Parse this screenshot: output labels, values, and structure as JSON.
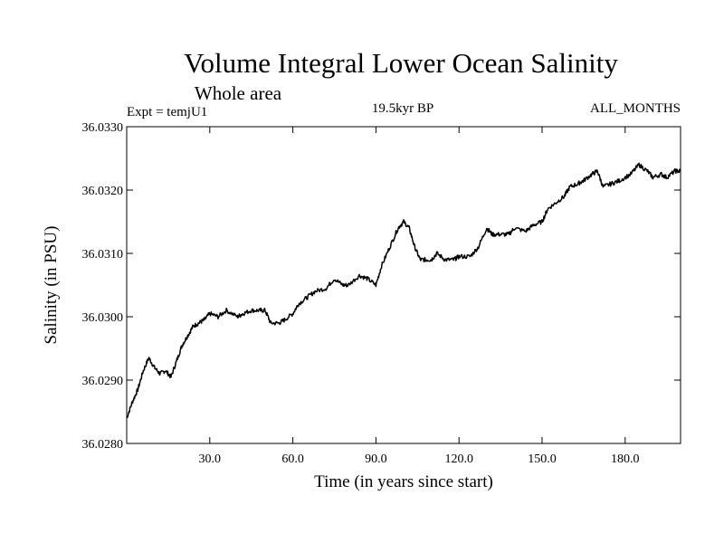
{
  "chart_data": {
    "type": "line",
    "title": "Volume Integral Lower Ocean Salinity",
    "subtitle": "Whole area",
    "annotations": {
      "left": "Expt = temjU1",
      "center": "19.5kyr BP",
      "right": "ALL_MONTHS"
    },
    "xlabel": "Time (in years since start)",
    "ylabel": "Salinity (in PSU)",
    "xlim": [
      0,
      200
    ],
    "ylim": [
      36.028,
      36.033
    ],
    "x_ticks": [
      30,
      60,
      90,
      120,
      150,
      180
    ],
    "x_tick_labels": [
      "30.0",
      "60.0",
      "90.0",
      "120.0",
      "150.0",
      "180.0"
    ],
    "y_ticks": [
      36.028,
      36.029,
      36.03,
      36.031,
      36.032,
      36.033
    ],
    "y_tick_labels": [
      "36.0280",
      "36.0290",
      "36.0300",
      "36.0310",
      "36.0320",
      "36.0330"
    ],
    "grid": false,
    "series": [
      {
        "name": "Salinity",
        "color": "#000000",
        "x": [
          0,
          2,
          4,
          6,
          8,
          10,
          12,
          14,
          16,
          18,
          20,
          22,
          24,
          26,
          28,
          30,
          33,
          36,
          40,
          42,
          45,
          48,
          50,
          52,
          55,
          57,
          60,
          62,
          65,
          68,
          72,
          75,
          78,
          80,
          84,
          87,
          90,
          92,
          95,
          98,
          100,
          102,
          104,
          106,
          108,
          110,
          112,
          115,
          118,
          120,
          124,
          127,
          130,
          132,
          135,
          138,
          140,
          144,
          147,
          150,
          152,
          155,
          158,
          160,
          163,
          165,
          168,
          170,
          172,
          175,
          178,
          182,
          185,
          188,
          190,
          193,
          195,
          198,
          200
        ],
        "values": [
          36.0284,
          36.02865,
          36.02885,
          36.02915,
          36.02935,
          36.0292,
          36.0291,
          36.02915,
          36.02905,
          36.0293,
          36.02955,
          36.0297,
          36.02985,
          36.0299,
          36.02995,
          36.03005,
          36.03,
          36.0301,
          36.03,
          36.03005,
          36.0301,
          36.0301,
          36.0301,
          36.0299,
          36.0299,
          36.02995,
          36.03005,
          36.0302,
          36.0303,
          36.0304,
          36.03045,
          36.0306,
          36.0305,
          36.0305,
          36.03065,
          36.0306,
          36.0305,
          36.0308,
          36.0311,
          36.0314,
          36.0315,
          36.0314,
          36.0311,
          36.0309,
          36.0309,
          36.0309,
          36.031,
          36.0309,
          36.0309,
          36.03095,
          36.03095,
          36.0311,
          36.0314,
          36.0313,
          36.0313,
          36.0313,
          36.0314,
          36.03135,
          36.03145,
          36.0315,
          36.0317,
          36.0318,
          36.0319,
          36.03205,
          36.0321,
          36.03215,
          36.03225,
          36.0323,
          36.03205,
          36.0321,
          36.03215,
          36.03225,
          36.0324,
          36.0323,
          36.0322,
          36.03225,
          36.0322,
          36.0323,
          36.0323
        ]
      }
    ]
  }
}
